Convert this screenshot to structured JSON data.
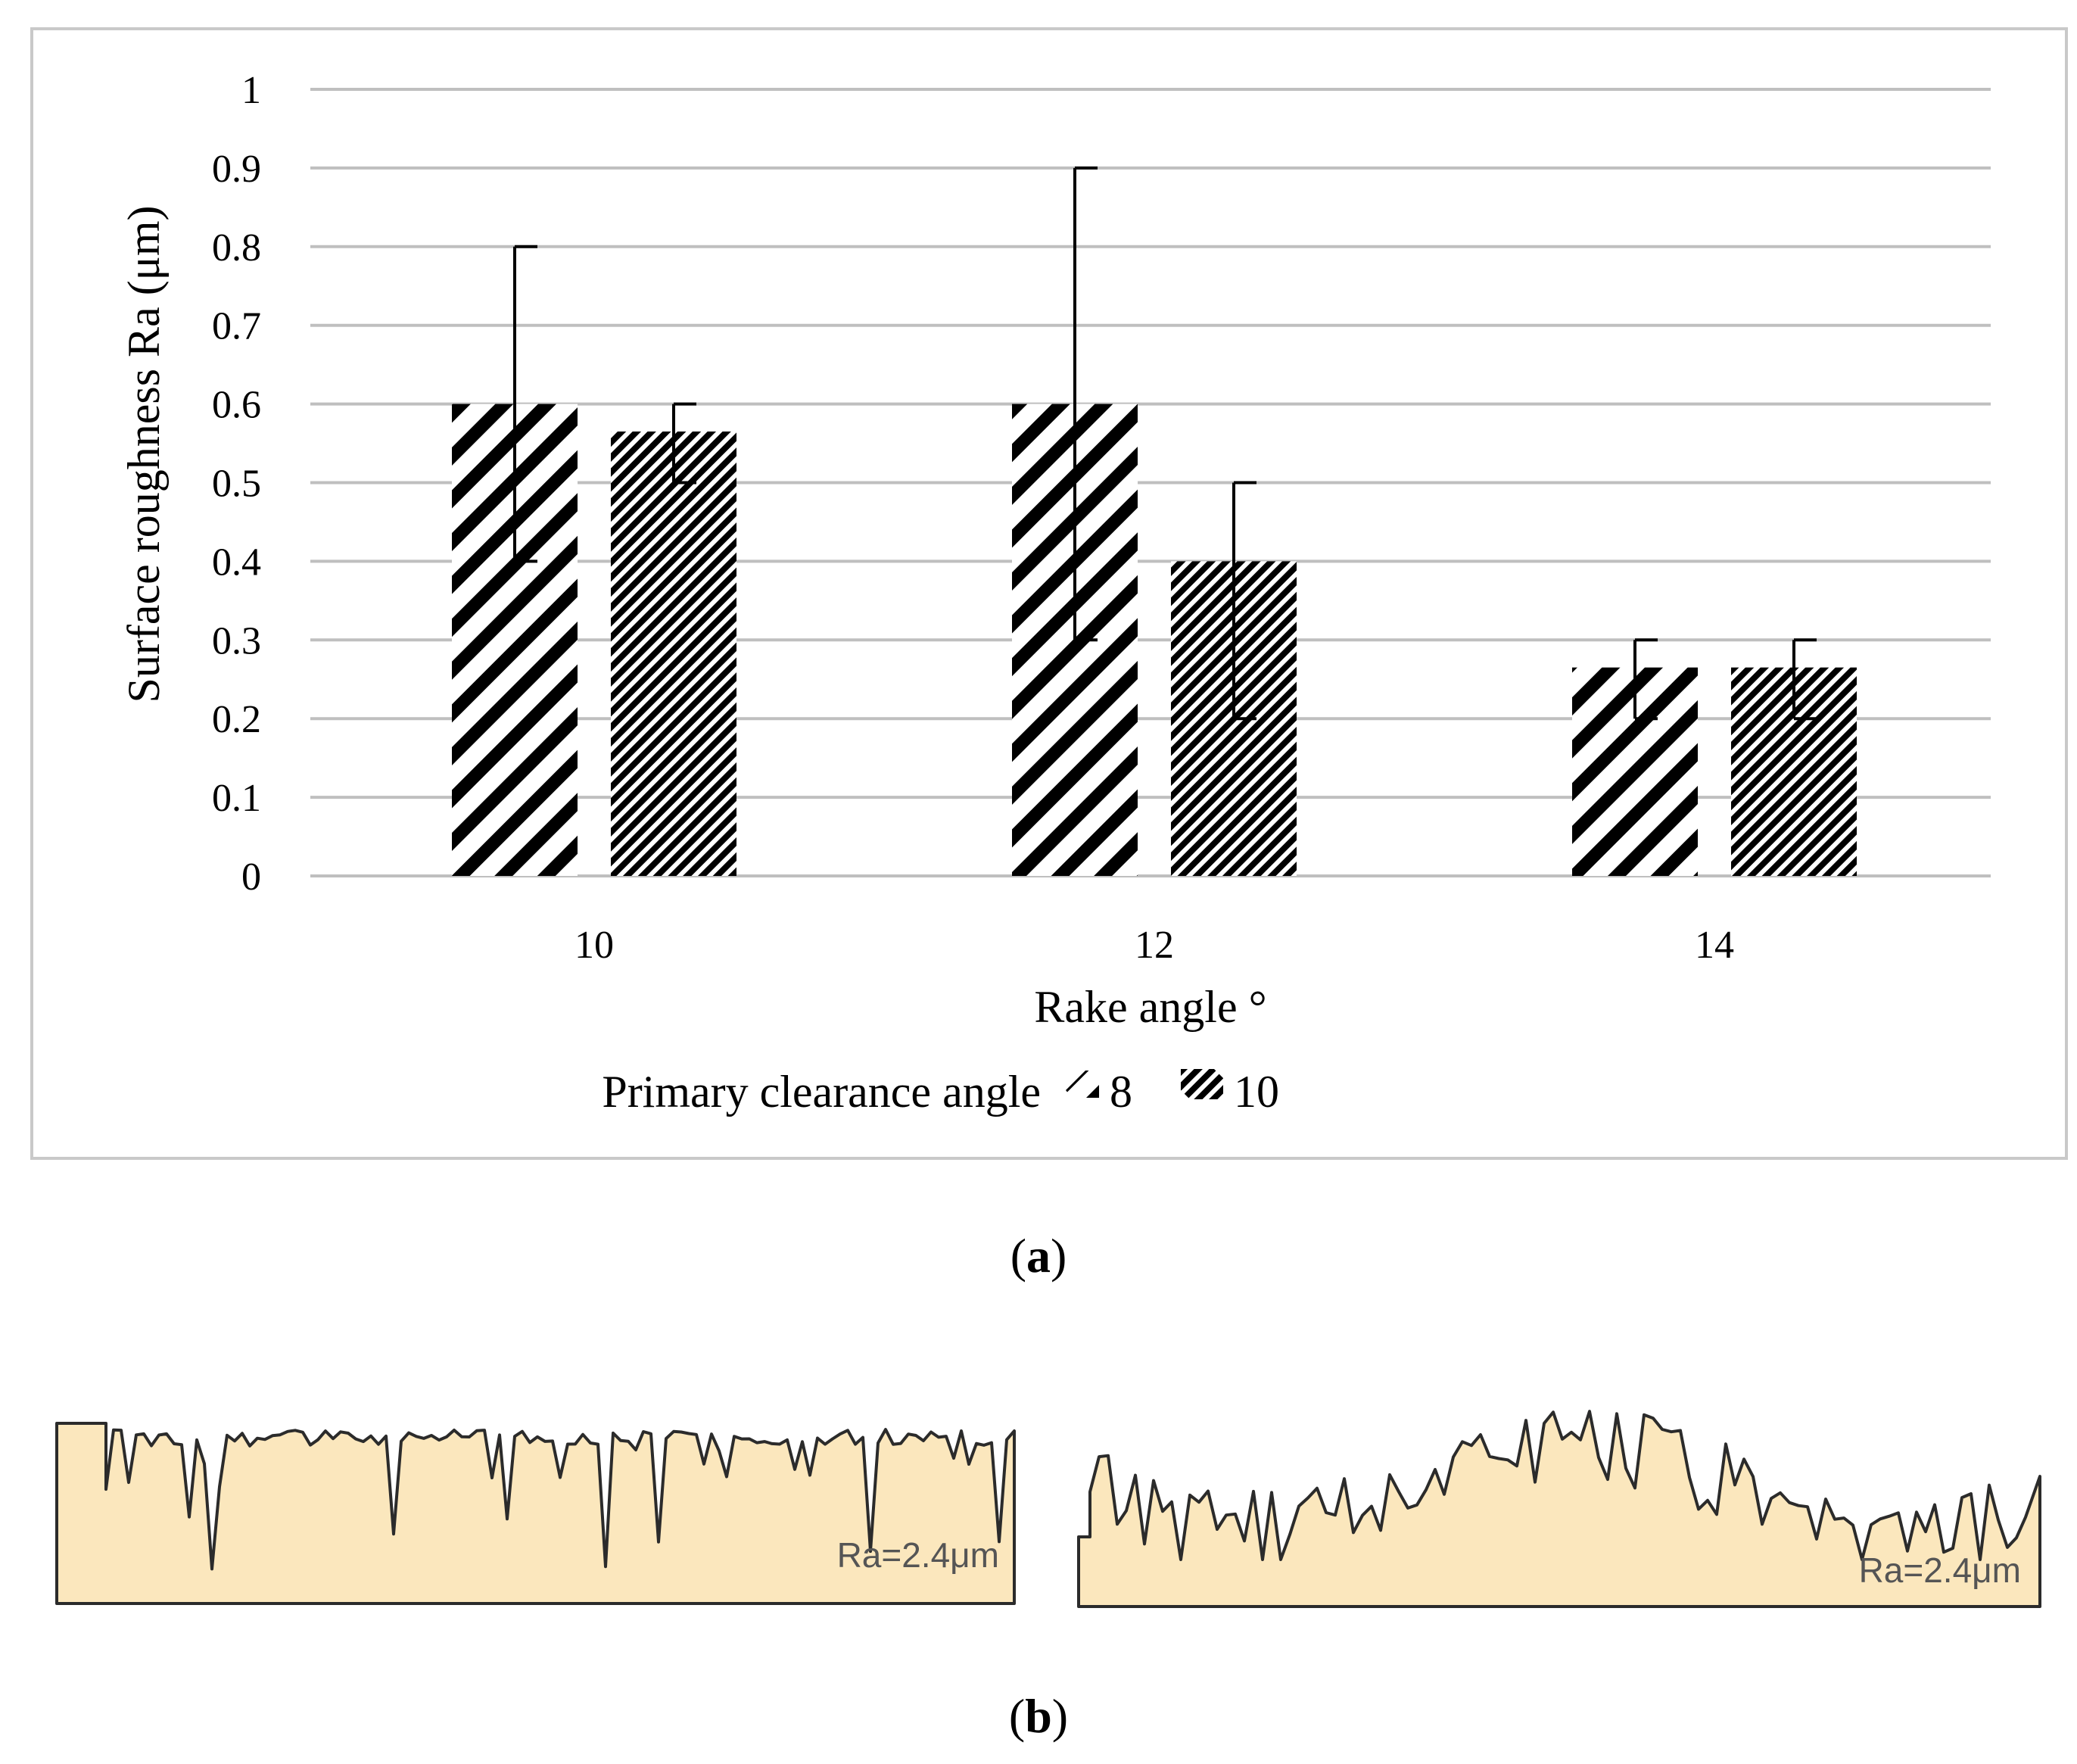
{
  "chart_data": {
    "type": "bar",
    "xlabel": "Rake angle °",
    "ylabel": "Surface roughness Ra (μm)",
    "ylim": [
      0,
      1
    ],
    "yticks": [
      0,
      0.1,
      0.2,
      0.3,
      0.4,
      0.5,
      0.6,
      0.7,
      0.8,
      0.9,
      1
    ],
    "ytick_labels": [
      "0",
      "0.1",
      "0.2",
      "0.3",
      "0.4",
      "0.5",
      "0.6",
      "0.7",
      "0.8",
      "0.9",
      "1"
    ],
    "grid": true,
    "categories": [
      "10",
      "12",
      "14"
    ],
    "legend_title": "Primary clearance angle",
    "legend_position": "bottom",
    "series": [
      {
        "name": "8",
        "pattern": "wide-diagonal-stripes",
        "values": [
          0.6,
          0.6,
          0.265
        ],
        "err_low": [
          0.4,
          0.3,
          0.2
        ],
        "err_high": [
          0.8,
          0.9,
          0.3
        ]
      },
      {
        "name": "10",
        "pattern": "narrow-diagonal-stripes",
        "values": [
          0.565,
          0.4,
          0.265
        ],
        "err_low": [
          0.5,
          0.2,
          0.2
        ],
        "err_high": [
          0.6,
          0.5,
          0.3
        ]
      }
    ]
  },
  "captions": {
    "a_open": "(",
    "a_letter": "a",
    "a_close": ")",
    "b_open": "(",
    "b_letter": "b",
    "b_close": ")"
  },
  "profiles": {
    "left_label": "Ra=2.4μm",
    "right_label": "Ra=2.4μm",
    "fill_color": "#fbe7bd",
    "line_color": "#2b2b2b"
  },
  "colors": {
    "grid": "#bfbfbf",
    "frame": "#c9c9c9",
    "bar_ink": "#000000"
  }
}
